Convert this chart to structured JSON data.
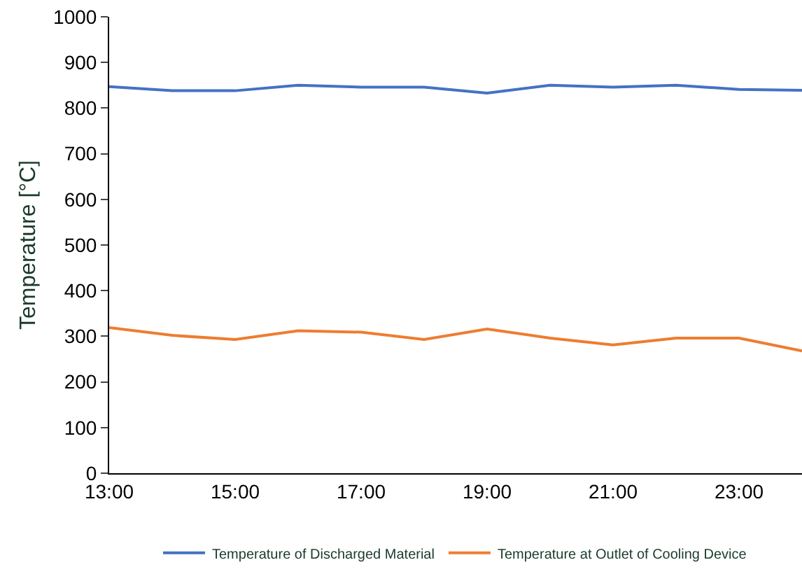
{
  "chart_data": {
    "type": "line",
    "ylabel": "Temperature [°C]",
    "x": [
      13,
      14,
      15,
      16,
      17,
      18,
      19,
      20,
      21,
      22,
      23,
      24
    ],
    "series": [
      {
        "name": "Temperature of Discharged Material",
        "color": "#4472c4",
        "values": [
          847,
          838,
          838,
          850,
          846,
          846,
          833,
          850,
          846,
          850,
          841,
          839
        ]
      },
      {
        "name": "Temperature at Outlet of Cooling Device",
        "color": "#ed7d31",
        "values": [
          319,
          302,
          293,
          312,
          309,
          293,
          316,
          296,
          281,
          296,
          296,
          268
        ]
      }
    ],
    "xlim": [
      13,
      24
    ],
    "xticks": [
      {
        "value": 13,
        "label": "13:00"
      },
      {
        "value": 15,
        "label": "15:00"
      },
      {
        "value": 17,
        "label": "17:00"
      },
      {
        "value": 19,
        "label": "19:00"
      },
      {
        "value": 21,
        "label": "21:00"
      },
      {
        "value": 23,
        "label": "23:00"
      }
    ],
    "ylim": [
      0,
      1000
    ],
    "yticks": [
      0,
      100,
      200,
      300,
      400,
      500,
      600,
      700,
      800,
      900,
      1000
    ],
    "grid": false,
    "legend": "bottom",
    "marker": "none",
    "line_style": "solid"
  }
}
